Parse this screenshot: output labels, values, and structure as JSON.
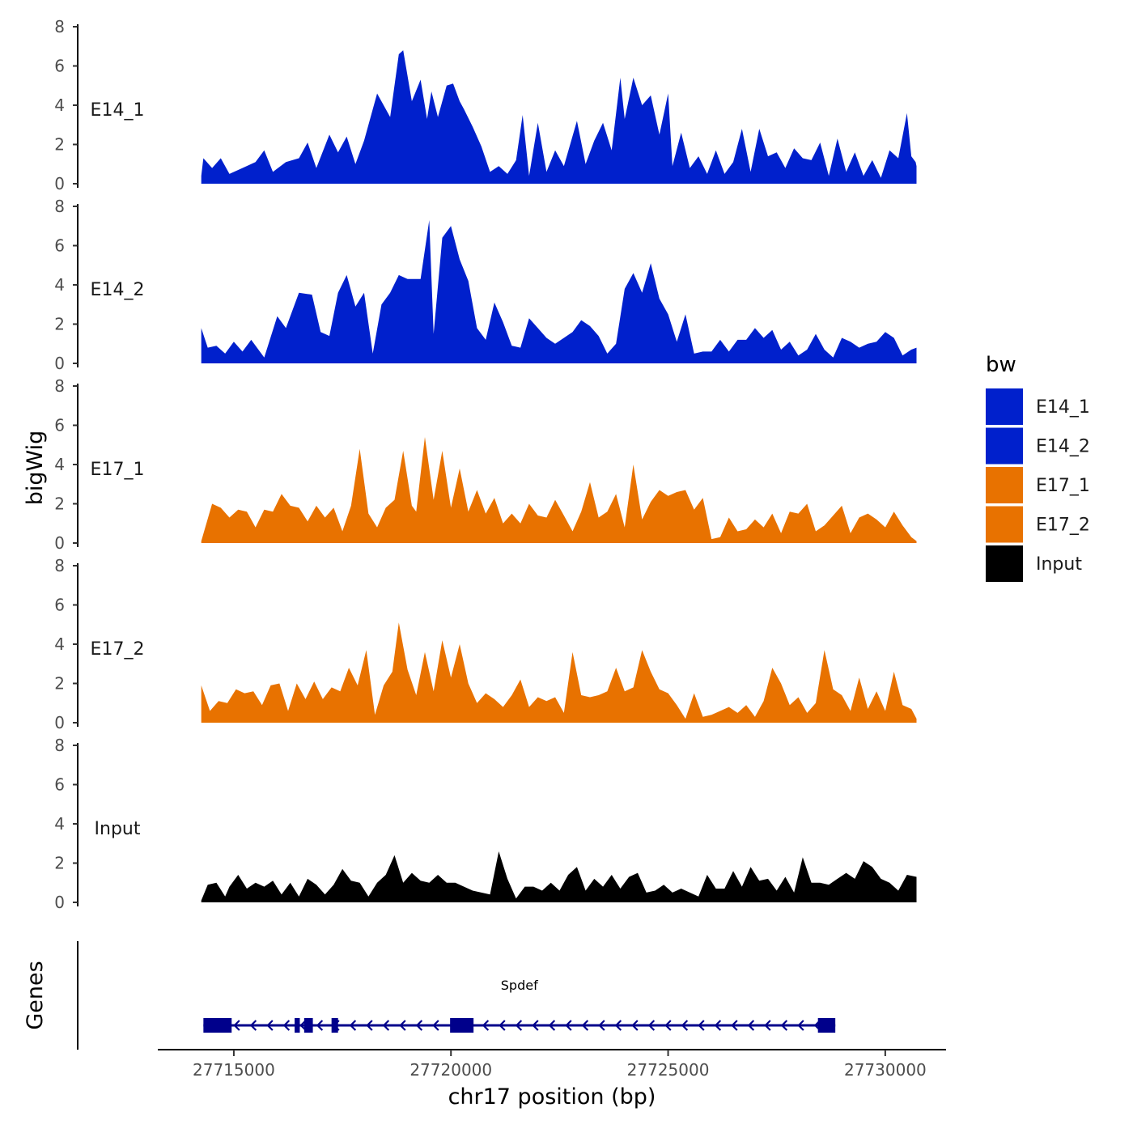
{
  "chart_data": {
    "type": "area",
    "xlabel": "chr17 position (bp)",
    "ylabel": "bigWig",
    "genes_label": "Genes",
    "xlim": [
      27713250,
      27731400
    ],
    "ylim": [
      0,
      8
    ],
    "x_ticks": [
      27715000,
      27720000,
      27725000,
      27730000
    ],
    "y_ticks": [
      0,
      2,
      4,
      6,
      8
    ],
    "region": [
      27714250,
      27730720
    ],
    "legend": {
      "title": "bw",
      "items": [
        {
          "name": "E14_1",
          "color": "#0020CC"
        },
        {
          "name": "E14_2",
          "color": "#0020CC"
        },
        {
          "name": "E17_1",
          "color": "#E87200"
        },
        {
          "name": "E17_2",
          "color": "#E87200"
        },
        {
          "name": "Input",
          "color": "#000000"
        }
      ]
    },
    "series": [
      {
        "name": "E14_1",
        "color": "#0020CC",
        "x": [
          27714250,
          27714300,
          27714500,
          27714700,
          27714900,
          27715200,
          27715500,
          27715700,
          27715900,
          27716200,
          27716500,
          27716700,
          27716900,
          27717200,
          27717400,
          27717600,
          27717800,
          27718000,
          27718300,
          27718600,
          27718800,
          27718900,
          27719100,
          27719300,
          27719450,
          27719550,
          27719700,
          27719900,
          27720050,
          27720200,
          27720300,
          27720500,
          27720700,
          27720900,
          27721100,
          27721300,
          27721500,
          27721650,
          27721800,
          27722000,
          27722200,
          27722400,
          27722600,
          27722900,
          27723100,
          27723300,
          27723500,
          27723700,
          27723900,
          27724000,
          27724200,
          27724400,
          27724600,
          27724800,
          27725000,
          27725100,
          27725300,
          27725500,
          27725700,
          27725900,
          27726100,
          27726300,
          27726500,
          27726700,
          27726900,
          27727100,
          27727300,
          27727500,
          27727700,
          27727900,
          27728100,
          27728300,
          27728500,
          27728700,
          27728900,
          27729100,
          27729300,
          27729500,
          27729700,
          27729900,
          27730100,
          27730300,
          27730500,
          27730600,
          27730700,
          27730720
        ],
        "y": [
          0.4,
          1.3,
          0.8,
          1.3,
          0.5,
          0.8,
          1.1,
          1.7,
          0.6,
          1.1,
          1.3,
          2.1,
          0.8,
          2.5,
          1.6,
          2.4,
          1.0,
          2.2,
          4.6,
          3.4,
          6.6,
          6.8,
          4.2,
          5.3,
          3.3,
          4.7,
          3.4,
          5.0,
          5.1,
          4.2,
          3.8,
          2.9,
          1.9,
          0.6,
          0.9,
          0.5,
          1.2,
          3.5,
          0.4,
          3.1,
          0.6,
          1.7,
          0.9,
          3.2,
          1.0,
          2.2,
          3.1,
          1.7,
          5.4,
          3.3,
          5.4,
          4.0,
          4.5,
          2.5,
          4.6,
          0.9,
          2.6,
          0.8,
          1.4,
          0.5,
          1.7,
          0.5,
          1.1,
          2.8,
          0.6,
          2.8,
          1.4,
          1.6,
          0.8,
          1.8,
          1.3,
          1.2,
          2.1,
          0.4,
          2.3,
          0.6,
          1.6,
          0.4,
          1.2,
          0.3,
          1.7,
          1.3,
          3.6,
          1.4,
          1.1,
          0.9
        ]
      },
      {
        "name": "E14_2",
        "color": "#0020CC",
        "x": [
          27714250,
          27714400,
          27714600,
          27714800,
          27715000,
          27715200,
          27715400,
          27715700,
          27716000,
          27716200,
          27716500,
          27716800,
          27717000,
          27717200,
          27717400,
          27717600,
          27717800,
          27718000,
          27718200,
          27718400,
          27718600,
          27718800,
          27719000,
          27719300,
          27719500,
          27719600,
          27719800,
          27720000,
          27720200,
          27720400,
          27720600,
          27720800,
          27721000,
          27721200,
          27721400,
          27721600,
          27721800,
          27722000,
          27722200,
          27722400,
          27722600,
          27722800,
          27723000,
          27723200,
          27723400,
          27723600,
          27723800,
          27724000,
          27724200,
          27724400,
          27724600,
          27724800,
          27725000,
          27725200,
          27725400,
          27725600,
          27725800,
          27726000,
          27726200,
          27726400,
          27726600,
          27726800,
          27727000,
          27727200,
          27727400,
          27727600,
          27727800,
          27728000,
          27728200,
          27728400,
          27728600,
          27728800,
          27729000,
          27729200,
          27729400,
          27729600,
          27729800,
          27730000,
          27730200,
          27730400,
          27730600,
          27730720
        ],
        "y": [
          1.8,
          0.8,
          0.9,
          0.5,
          1.1,
          0.6,
          1.2,
          0.3,
          2.4,
          1.8,
          3.6,
          3.5,
          1.6,
          1.4,
          3.6,
          4.5,
          2.9,
          3.6,
          0.5,
          3.0,
          3.6,
          4.5,
          4.3,
          4.3,
          7.3,
          1.5,
          6.4,
          7.0,
          5.3,
          4.2,
          1.8,
          1.2,
          3.1,
          2.1,
          0.9,
          0.8,
          2.3,
          1.8,
          1.3,
          1.0,
          1.3,
          1.6,
          2.2,
          1.9,
          1.4,
          0.5,
          1.0,
          3.8,
          4.6,
          3.6,
          5.1,
          3.3,
          2.5,
          1.1,
          2.5,
          0.5,
          0.6,
          0.6,
          1.2,
          0.6,
          1.2,
          1.2,
          1.8,
          1.3,
          1.7,
          0.7,
          1.1,
          0.4,
          0.7,
          1.5,
          0.7,
          0.3,
          1.3,
          1.1,
          0.8,
          1.0,
          1.1,
          1.6,
          1.3,
          0.4,
          0.7,
          0.8
        ]
      },
      {
        "name": "E17_1",
        "color": "#E87200",
        "x": [
          27714250,
          27714500,
          27714700,
          27714900,
          27715100,
          27715300,
          27715500,
          27715700,
          27715900,
          27716100,
          27716300,
          27716500,
          27716700,
          27716900,
          27717100,
          27717300,
          27717500,
          27717700,
          27717900,
          27718100,
          27718300,
          27718500,
          27718700,
          27718900,
          27719100,
          27719200,
          27719400,
          27719600,
          27719800,
          27720000,
          27720200,
          27720400,
          27720600,
          27720800,
          27721000,
          27721200,
          27721400,
          27721600,
          27721800,
          27722000,
          27722200,
          27722400,
          27722600,
          27722800,
          27723000,
          27723200,
          27723400,
          27723600,
          27723800,
          27724000,
          27724200,
          27724400,
          27724600,
          27724800,
          27725000,
          27725200,
          27725400,
          27725600,
          27725800,
          27726000,
          27726200,
          27726400,
          27726600,
          27726800,
          27727000,
          27727200,
          27727400,
          27727600,
          27727800,
          27728000,
          27728200,
          27728400,
          27728600,
          27728800,
          27729000,
          27729200,
          27729400,
          27729600,
          27729800,
          27730000,
          27730200,
          27730400,
          27730600,
          27730720
        ],
        "y": [
          0.1,
          2.0,
          1.8,
          1.3,
          1.7,
          1.6,
          0.8,
          1.7,
          1.6,
          2.5,
          1.9,
          1.8,
          1.1,
          1.9,
          1.3,
          1.8,
          0.6,
          1.9,
          4.8,
          1.5,
          0.8,
          1.8,
          2.2,
          4.7,
          1.9,
          1.6,
          5.4,
          2.2,
          4.7,
          1.8,
          3.8,
          1.6,
          2.7,
          1.5,
          2.3,
          1.0,
          1.5,
          1.0,
          2.0,
          1.4,
          1.3,
          2.2,
          1.4,
          0.6,
          1.6,
          3.1,
          1.3,
          1.6,
          2.5,
          0.8,
          4.0,
          1.2,
          2.1,
          2.7,
          2.4,
          2.6,
          2.7,
          1.7,
          2.3,
          0.2,
          0.3,
          1.3,
          0.6,
          0.7,
          1.2,
          0.8,
          1.5,
          0.5,
          1.6,
          1.5,
          2.0,
          0.6,
          0.9,
          1.4,
          1.9,
          0.5,
          1.3,
          1.5,
          1.2,
          0.8,
          1.6,
          0.9,
          0.3,
          0.1
        ]
      },
      {
        "name": "E17_2",
        "color": "#E87200",
        "x": [
          27714250,
          27714450,
          27714650,
          27714850,
          27715050,
          27715250,
          27715450,
          27715650,
          27715850,
          27716050,
          27716250,
          27716450,
          27716650,
          27716850,
          27717050,
          27717250,
          27717450,
          27717650,
          27717850,
          27718050,
          27718250,
          27718450,
          27718650,
          27718800,
          27719000,
          27719200,
          27719400,
          27719600,
          27719800,
          27720000,
          27720200,
          27720400,
          27720600,
          27720800,
          27721000,
          27721200,
          27721400,
          27721600,
          27721800,
          27722000,
          27722200,
          27722400,
          27722600,
          27722800,
          27723000,
          27723200,
          27723400,
          27723600,
          27723800,
          27724000,
          27724200,
          27724400,
          27724600,
          27724800,
          27725000,
          27725200,
          27725400,
          27725600,
          27725800,
          27726000,
          27726200,
          27726400,
          27726600,
          27726800,
          27727000,
          27727200,
          27727400,
          27727600,
          27727800,
          27728000,
          27728200,
          27728400,
          27728600,
          27728800,
          27729000,
          27729200,
          27729400,
          27729600,
          27729800,
          27730000,
          27730200,
          27730400,
          27730600,
          27730720
        ],
        "y": [
          1.9,
          0.6,
          1.1,
          1.0,
          1.7,
          1.5,
          1.6,
          0.9,
          1.9,
          2.0,
          0.6,
          2.0,
          1.2,
          2.1,
          1.2,
          1.8,
          1.6,
          2.8,
          1.9,
          3.7,
          0.4,
          1.9,
          2.6,
          5.1,
          2.7,
          1.4,
          3.6,
          1.6,
          4.2,
          2.3,
          4.0,
          2.0,
          1.0,
          1.5,
          1.2,
          0.8,
          1.4,
          2.2,
          0.8,
          1.3,
          1.1,
          1.3,
          0.5,
          3.6,
          1.4,
          1.3,
          1.4,
          1.6,
          2.8,
          1.6,
          1.8,
          3.7,
          2.6,
          1.7,
          1.5,
          0.9,
          0.2,
          1.5,
          0.3,
          0.4,
          0.6,
          0.8,
          0.5,
          0.9,
          0.3,
          1.1,
          2.8,
          2.0,
          0.9,
          1.3,
          0.5,
          1.0,
          3.7,
          1.7,
          1.4,
          0.6,
          2.3,
          0.7,
          1.6,
          0.6,
          2.6,
          0.9,
          0.7,
          0.2
        ]
      },
      {
        "name": "Input",
        "color": "#000000",
        "x": [
          27714250,
          27714400,
          27714600,
          27714800,
          27714900,
          27715100,
          27715300,
          27715500,
          27715700,
          27715900,
          27716100,
          27716300,
          27716500,
          27716700,
          27716900,
          27717100,
          27717300,
          27717500,
          27717700,
          27717900,
          27718100,
          27718300,
          27718500,
          27718700,
          27718900,
          27719100,
          27719300,
          27719500,
          27719700,
          27719900,
          27720100,
          27720300,
          27720500,
          27720700,
          27720900,
          27721100,
          27721300,
          27721500,
          27721700,
          27721900,
          27722100,
          27722300,
          27722500,
          27722700,
          27722900,
          27723100,
          27723300,
          27723500,
          27723700,
          27723900,
          27724100,
          27724300,
          27724500,
          27724700,
          27724900,
          27725100,
          27725300,
          27725500,
          27725700,
          27725900,
          27726100,
          27726300,
          27726500,
          27726700,
          27726900,
          27727100,
          27727300,
          27727500,
          27727700,
          27727900,
          27728100,
          27728300,
          27728500,
          27728700,
          27728900,
          27729100,
          27729300,
          27729500,
          27729700,
          27729900,
          27730100,
          27730300,
          27730500,
          27730720
        ],
        "y": [
          0.1,
          0.9,
          1.0,
          0.3,
          0.8,
          1.4,
          0.7,
          1.0,
          0.8,
          1.1,
          0.4,
          1.0,
          0.3,
          1.2,
          0.9,
          0.4,
          0.9,
          1.7,
          1.1,
          1.0,
          0.3,
          1.0,
          1.4,
          2.4,
          1.0,
          1.5,
          1.1,
          1.0,
          1.4,
          1.0,
          1.0,
          0.8,
          0.6,
          0.5,
          0.4,
          2.6,
          1.2,
          0.2,
          0.8,
          0.8,
          0.6,
          1.0,
          0.6,
          1.4,
          1.8,
          0.6,
          1.2,
          0.8,
          1.4,
          0.7,
          1.3,
          1.5,
          0.5,
          0.6,
          0.9,
          0.5,
          0.7,
          0.5,
          0.3,
          1.4,
          0.7,
          0.7,
          1.6,
          0.8,
          1.8,
          1.1,
          1.2,
          0.6,
          1.3,
          0.5,
          2.3,
          1.0,
          1.0,
          0.9,
          1.2,
          1.5,
          1.2,
          2.1,
          1.8,
          1.2,
          1.0,
          0.6,
          1.4,
          1.3
        ]
      }
    ],
    "gene": {
      "name": "Spdef",
      "strand": "-",
      "start": 27714300,
      "end": 27728850,
      "color": "#00008B",
      "exons": [
        [
          27714300,
          27714950
        ],
        [
          27716400,
          27716520
        ],
        [
          27716620,
          27716820
        ],
        [
          27717250,
          27717400
        ],
        [
          27719980,
          27720520
        ],
        [
          27728450,
          27728850
        ]
      ]
    }
  }
}
